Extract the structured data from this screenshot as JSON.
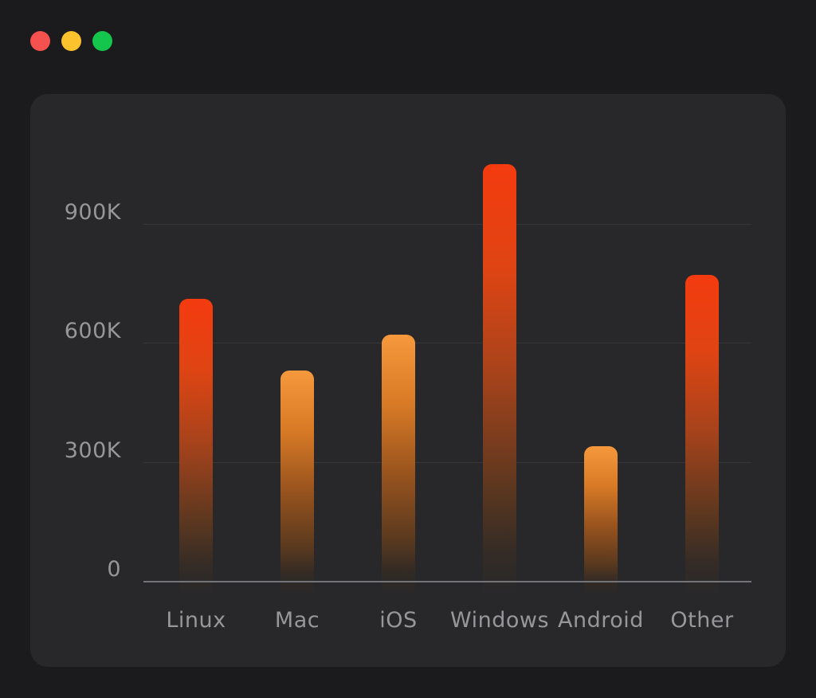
{
  "window": {
    "traffic_lights": [
      {
        "name": "close",
        "color": "#f5524f"
      },
      {
        "name": "minimize",
        "color": "#fcc22e"
      },
      {
        "name": "zoom",
        "color": "#15c64c"
      }
    ]
  },
  "theme": {
    "background": "#1b1b1d",
    "panel_background": "#28282a",
    "axis_line_color": "#737478",
    "gridline_color": "rgba(255,255,255,0.07)",
    "label_color": "#97979a",
    "bar_red_top": "#f43b0f",
    "bar_orange_top": "#f6983c"
  },
  "chart_data": {
    "type": "bar",
    "title": "",
    "xlabel": "",
    "ylabel": "",
    "categories": [
      "Linux",
      "Mac",
      "iOS",
      "Windows",
      "Android",
      "Other"
    ],
    "values": [
      710,
      530,
      620,
      1050,
      340,
      770
    ],
    "value_unit": "K",
    "bar_styles": [
      "red",
      "orange",
      "orange",
      "red",
      "orange",
      "red"
    ],
    "y_ticks": [
      {
        "label": "900K",
        "value": 900
      },
      {
        "label": "600K",
        "value": 600
      },
      {
        "label": "300K",
        "value": 300
      },
      {
        "label": "0",
        "value": 0
      }
    ],
    "ylim": [
      0,
      1100
    ],
    "grid": true,
    "legend": false
  }
}
